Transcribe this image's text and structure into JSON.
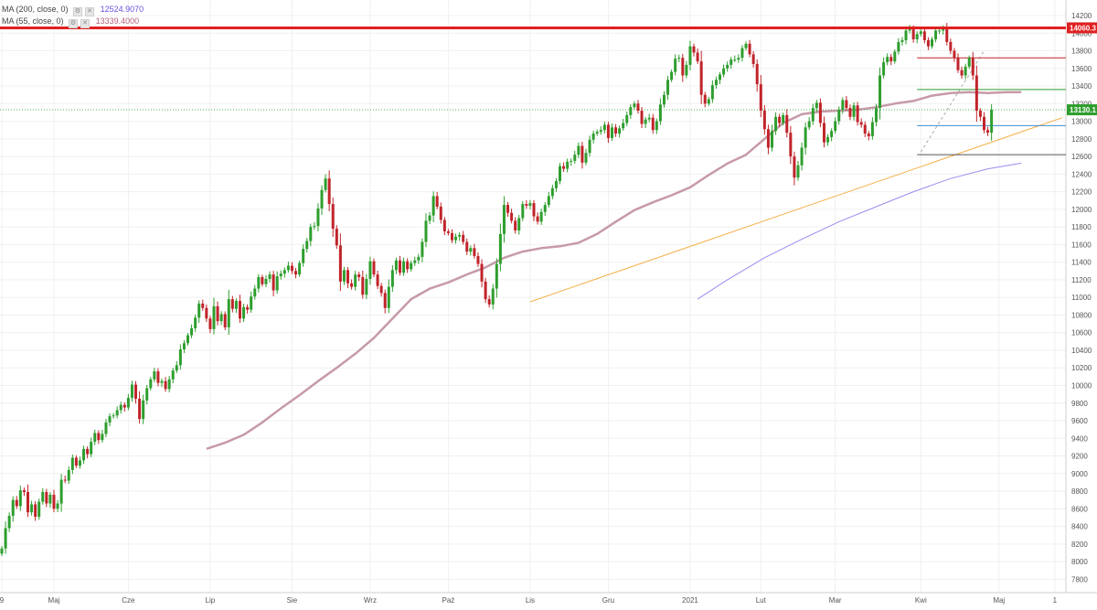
{
  "legend": {
    "ma200_label": "MA (200, close, 0)",
    "ma200_value": "12524.9070",
    "ma55_label": "MA (55, close, 0)",
    "ma55_value": "13339.4000",
    "settings_icon": "gear-icon",
    "close_icon": "close-icon"
  },
  "colors": {
    "bull": "#2e9e2e",
    "bear": "#c0242a",
    "ma55": "#c79aa8",
    "ma200": "#9a8cf0",
    "trendline": "#f5b04a",
    "resistance": "#e02020",
    "last_price_line": "#4caf50",
    "grid": "#f0f0f0"
  },
  "price_labels": {
    "resistance": "14060.3",
    "last_price": "13130.1"
  },
  "chart_data": {
    "type": "candlestick",
    "title": "",
    "xlabel": "",
    "ylabel": "",
    "ylim": [
      7640,
      14300
    ],
    "grid": true,
    "y_ticks": [
      7800,
      8000,
      8200,
      8400,
      8600,
      8800,
      9000,
      9200,
      9400,
      9600,
      9800,
      10000,
      10200,
      10400,
      10600,
      10800,
      11000,
      11200,
      11400,
      11600,
      11800,
      12000,
      12200,
      12400,
      12600,
      12800,
      13000,
      13200,
      13400,
      13600,
      13800,
      14000,
      14200
    ],
    "x_ticks": [
      {
        "label": "9",
        "bar": 0
      },
      {
        "label": "Maj",
        "bar": 14
      },
      {
        "label": "Cze",
        "bar": 34
      },
      {
        "label": "Lip",
        "bar": 56
      },
      {
        "label": "Sie",
        "bar": 78
      },
      {
        "label": "Wrz",
        "bar": 99
      },
      {
        "label": "Paź",
        "bar": 120
      },
      {
        "label": "Lis",
        "bar": 142
      },
      {
        "label": "Gru",
        "bar": 163
      },
      {
        "label": "2021",
        "bar": 185
      },
      {
        "label": "Lut",
        "bar": 204
      },
      {
        "label": "Mar",
        "bar": 224
      },
      {
        "label": "Kwi",
        "bar": 247
      },
      {
        "label": "Maj",
        "bar": 268
      },
      {
        "label": "1",
        "bar": 283
      }
    ],
    "total_bars": 285,
    "closes": [
      8150,
      8380,
      8520,
      8700,
      8630,
      8810,
      8790,
      8560,
      8650,
      8510,
      8680,
      8790,
      8660,
      8760,
      8600,
      8660,
      8930,
      8920,
      9040,
      9180,
      9090,
      9150,
      9280,
      9220,
      9360,
      9460,
      9380,
      9450,
      9580,
      9650,
      9660,
      9720,
      9780,
      9750,
      9860,
      10010,
      9850,
      9620,
      9830,
      9970,
      10070,
      10160,
      10030,
      10050,
      9960,
      10070,
      10170,
      10230,
      10410,
      10480,
      10570,
      10650,
      10770,
      10930,
      10880,
      10760,
      10640,
      10900,
      10730,
      10810,
      10660,
      10980,
      10870,
      10960,
      10760,
      10890,
      10860,
      11010,
      11100,
      11230,
      11150,
      11210,
      11260,
      11080,
      11240,
      11270,
      11310,
      11360,
      11300,
      11260,
      11390,
      11550,
      11640,
      11800,
      11810,
      12010,
      12220,
      12350,
      12060,
      11780,
      11590,
      11180,
      11310,
      11160,
      11120,
      11260,
      11230,
      11030,
      11210,
      11410,
      11260,
      11130,
      11050,
      10880,
      11120,
      11310,
      11420,
      11280,
      11410,
      11320,
      11390,
      11420,
      11460,
      11630,
      11870,
      11930,
      12150,
      12030,
      11880,
      11750,
      11730,
      11650,
      11690,
      11710,
      11630,
      11520,
      11560,
      11470,
      11380,
      11180,
      10980,
      10920,
      11100,
      11380,
      11720,
      12050,
      11960,
      11870,
      11760,
      11900,
      12060,
      12040,
      12070,
      11920,
      11860,
      11970,
      12050,
      12150,
      12240,
      12320,
      12490,
      12460,
      12540,
      12550,
      12620,
      12720,
      12530,
      12640,
      12790,
      12860,
      12880,
      12900,
      12960,
      12810,
      12930,
      12860,
      12920,
      12980,
      13070,
      13160,
      13200,
      13120,
      12970,
      13020,
      13040,
      12900,
      13000,
      13190,
      13300,
      13470,
      13560,
      13710,
      13720,
      13520,
      13640,
      13850,
      13780,
      13680,
      13300,
      13200,
      13250,
      13410,
      13470,
      13530,
      13600,
      13640,
      13700,
      13700,
      13720,
      13830,
      13880,
      13760,
      13650,
      13420,
      13120,
      12910,
      12700,
      12890,
      13050,
      12980,
      13070,
      12870,
      12600,
      12360,
      12500,
      12700,
      12930,
      13000,
      13150,
      13210,
      12980,
      12760,
      12820,
      12890,
      13000,
      13130,
      13240,
      13150,
      13050,
      13180,
      12990,
      12960,
      12860,
      12830,
      12990,
      13150,
      13520,
      13670,
      13730,
      13680,
      13790,
      13900,
      13920,
      14030,
      14050,
      13930,
      13990,
      14020,
      13920,
      13850,
      13930,
      14030,
      14030,
      14060,
      13900,
      13800,
      13720,
      13580,
      13520,
      13620,
      13720,
      13520,
      13120,
      13050,
      12900,
      12870,
      13130
    ],
    "ma55": [
      {
        "bar": 55,
        "value": 9280
      },
      {
        "bar": 60,
        "value": 9350
      },
      {
        "bar": 65,
        "value": 9440
      },
      {
        "bar": 70,
        "value": 9580
      },
      {
        "bar": 75,
        "value": 9740
      },
      {
        "bar": 80,
        "value": 9890
      },
      {
        "bar": 85,
        "value": 10050
      },
      {
        "bar": 90,
        "value": 10200
      },
      {
        "bar": 95,
        "value": 10360
      },
      {
        "bar": 100,
        "value": 10540
      },
      {
        "bar": 105,
        "value": 10760
      },
      {
        "bar": 110,
        "value": 10980
      },
      {
        "bar": 115,
        "value": 11100
      },
      {
        "bar": 120,
        "value": 11170
      },
      {
        "bar": 125,
        "value": 11260
      },
      {
        "bar": 130,
        "value": 11340
      },
      {
        "bar": 135,
        "value": 11450
      },
      {
        "bar": 140,
        "value": 11520
      },
      {
        "bar": 145,
        "value": 11560
      },
      {
        "bar": 150,
        "value": 11580
      },
      {
        "bar": 155,
        "value": 11620
      },
      {
        "bar": 160,
        "value": 11720
      },
      {
        "bar": 165,
        "value": 11860
      },
      {
        "bar": 170,
        "value": 11990
      },
      {
        "bar": 175,
        "value": 12080
      },
      {
        "bar": 180,
        "value": 12160
      },
      {
        "bar": 185,
        "value": 12250
      },
      {
        "bar": 190,
        "value": 12390
      },
      {
        "bar": 195,
        "value": 12520
      },
      {
        "bar": 200,
        "value": 12620
      },
      {
        "bar": 205,
        "value": 12800
      },
      {
        "bar": 210,
        "value": 12980
      },
      {
        "bar": 215,
        "value": 13080
      },
      {
        "bar": 220,
        "value": 13110
      },
      {
        "bar": 225,
        "value": 13120
      },
      {
        "bar": 230,
        "value": 13130
      },
      {
        "bar": 235,
        "value": 13160
      },
      {
        "bar": 240,
        "value": 13200
      },
      {
        "bar": 245,
        "value": 13230
      },
      {
        "bar": 250,
        "value": 13290
      },
      {
        "bar": 255,
        "value": 13320
      },
      {
        "bar": 260,
        "value": 13330
      },
      {
        "bar": 265,
        "value": 13320
      },
      {
        "bar": 270,
        "value": 13330
      },
      {
        "bar": 274,
        "value": 13330
      }
    ],
    "ma200": [
      {
        "bar": 187,
        "value": 10980
      },
      {
        "bar": 195,
        "value": 11200
      },
      {
        "bar": 205,
        "value": 11450
      },
      {
        "bar": 215,
        "value": 11660
      },
      {
        "bar": 225,
        "value": 11860
      },
      {
        "bar": 235,
        "value": 12030
      },
      {
        "bar": 245,
        "value": 12200
      },
      {
        "bar": 255,
        "value": 12350
      },
      {
        "bar": 265,
        "value": 12460
      },
      {
        "bar": 274,
        "value": 12524
      }
    ],
    "trendline": {
      "from": {
        "bar": 142,
        "value": 10950
      },
      "to": {
        "bar": 285,
        "value": 13040
      }
    },
    "resistance": 14060.3,
    "last_price": 13130.1,
    "horizontal_levels": [
      {
        "value": 13720,
        "color": "#c0242a",
        "from_bar": 246,
        "to_bar": 285
      },
      {
        "value": 13360,
        "color": "#2e9e2e",
        "from_bar": 246,
        "to_bar": 285
      },
      {
        "value": 12950,
        "color": "#3f8fd0",
        "from_bar": 246,
        "to_bar": 285
      },
      {
        "value": 12620,
        "color": "#555555",
        "from_bar": 246,
        "to_bar": 285
      }
    ],
    "dashed_line": {
      "from": {
        "bar": 247,
        "value": 12650
      },
      "to": {
        "bar": 264,
        "value": 13800
      }
    }
  }
}
